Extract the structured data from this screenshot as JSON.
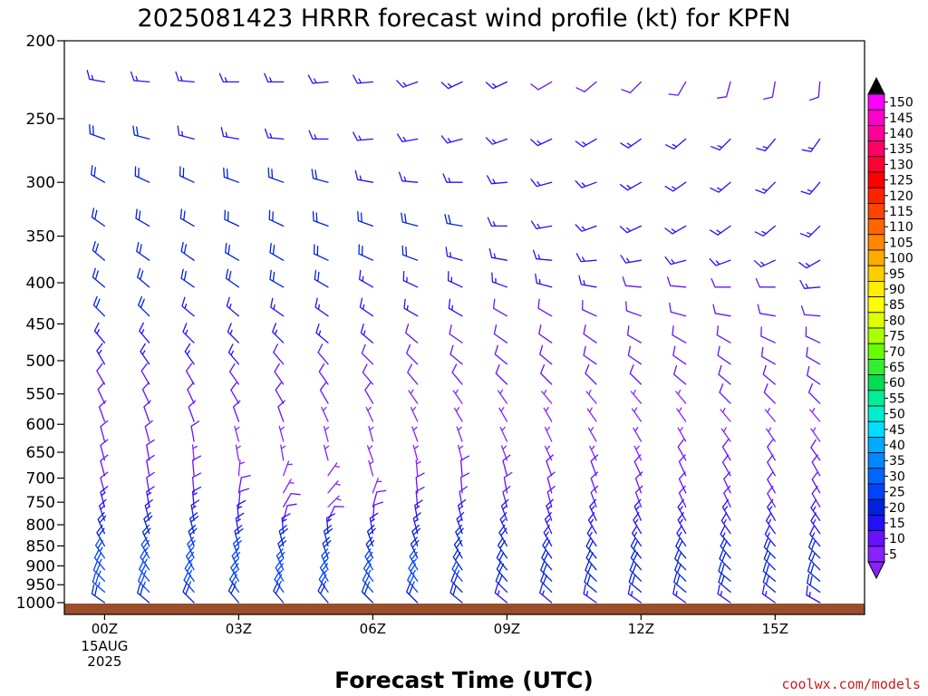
{
  "colors": {
    "ground": "#9a4f2a",
    "credit": "#cc1a1a"
  },
  "credit": "coolwx.com/models",
  "chart_data": {
    "type": "wind-barb-profile",
    "title": "2025081423 HRRR forecast wind profile (kt) for KPFN",
    "xlabel": "Forecast Time (UTC)",
    "ylabel": "",
    "y_axis": {
      "scale": "log-pressure",
      "range_hPa": [
        1035,
        200
      ],
      "ticks": [
        "200",
        "250",
        "300",
        "350",
        "400",
        "450",
        "500",
        "550",
        "600",
        "650",
        "700",
        "750",
        "800",
        "850",
        "900",
        "950",
        "1000"
      ]
    },
    "x_axis": {
      "range_hours": [
        -0.9,
        17.0
      ],
      "ticks": [
        {
          "hour": 0,
          "label": "00Z",
          "sublabels": [
            "15AUG",
            "2025"
          ]
        },
        {
          "hour": 3,
          "label": "03Z"
        },
        {
          "hour": 6,
          "label": "06Z"
        },
        {
          "hour": 9,
          "label": "09Z"
        },
        {
          "hour": 12,
          "label": "12Z"
        },
        {
          "hour": 15,
          "label": "15Z"
        }
      ]
    },
    "hours": [
      -1,
      0,
      1,
      2,
      3,
      4,
      5,
      6,
      7,
      8,
      9,
      10,
      11,
      12,
      13,
      14,
      15,
      16,
      17
    ],
    "levels_hPa": [
      225,
      265,
      300,
      340,
      375,
      405,
      440,
      475,
      505,
      535,
      565,
      595,
      630,
      665,
      695,
      730,
      760,
      790,
      820,
      850,
      880,
      910,
      940,
      970,
      1000
    ],
    "grid": false,
    "colorbar": {
      "label": "",
      "labels": [
        "150",
        "145",
        "140",
        "135",
        "130",
        "125",
        "120",
        "115",
        "110",
        "105",
        "100",
        "95",
        "90",
        "85",
        "80",
        "75",
        "70",
        "65",
        "60",
        "55",
        "50",
        "45",
        "40",
        "35",
        "30",
        "25",
        "20",
        "15",
        "10",
        "5"
      ],
      "colors": [
        "#ff00ff",
        "#ff00cc",
        "#ff0099",
        "#ff0066",
        "#ff0033",
        "#ff0000",
        "#ff2200",
        "#ff4400",
        "#ff6600",
        "#ff8800",
        "#ffaa00",
        "#ffcc00",
        "#ffee00",
        "#ffff00",
        "#ddff00",
        "#aaff00",
        "#66ff00",
        "#33ee33",
        "#00dd55",
        "#00ee99",
        "#00eecc",
        "#00ddff",
        "#00aaff",
        "#0088ff",
        "#0066ff",
        "#0044ff",
        "#0022dd",
        "#2211ff",
        "#6611ff",
        "#8822ff"
      ]
    },
    "directions_deg": [
      [
        225,
        280,
        275,
        275,
        270,
        270,
        265,
        265,
        250,
        245,
        245,
        240,
        230,
        225,
        210,
        195,
        190,
        185,
        160
      ],
      [
        290,
        290,
        285,
        285,
        280,
        275,
        270,
        265,
        260,
        255,
        250,
        245,
        240,
        235,
        230,
        225,
        220,
        215,
        215
      ],
      [
        300,
        300,
        295,
        295,
        290,
        290,
        285,
        280,
        275,
        270,
        265,
        255,
        250,
        240,
        235,
        230,
        225,
        220,
        215
      ],
      [
        305,
        305,
        300,
        300,
        295,
        295,
        290,
        290,
        285,
        280,
        270,
        260,
        250,
        245,
        240,
        235,
        230,
        225,
        220
      ],
      [
        310,
        310,
        305,
        305,
        300,
        300,
        295,
        295,
        290,
        285,
        280,
        275,
        265,
        260,
        255,
        250,
        245,
        240,
        235
      ],
      [
        315,
        310,
        310,
        305,
        305,
        300,
        300,
        300,
        295,
        295,
        290,
        285,
        280,
        275,
        275,
        270,
        270,
        265,
        260
      ],
      [
        320,
        315,
        315,
        310,
        310,
        305,
        305,
        305,
        300,
        300,
        300,
        300,
        295,
        290,
        285,
        280,
        280,
        275,
        275
      ],
      [
        325,
        320,
        320,
        315,
        315,
        315,
        310,
        310,
        310,
        305,
        305,
        305,
        305,
        300,
        300,
        300,
        295,
        295,
        290
      ],
      [
        330,
        330,
        325,
        325,
        320,
        320,
        320,
        315,
        315,
        310,
        310,
        310,
        305,
        305,
        305,
        305,
        300,
        300,
        300
      ],
      [
        330,
        330,
        330,
        330,
        325,
        325,
        325,
        320,
        320,
        320,
        315,
        315,
        315,
        315,
        310,
        310,
        310,
        305,
        305
      ],
      [
        335,
        335,
        335,
        335,
        330,
        330,
        330,
        330,
        325,
        325,
        325,
        320,
        320,
        320,
        320,
        315,
        315,
        315,
        310
      ],
      [
        340,
        340,
        340,
        340,
        340,
        340,
        335,
        335,
        335,
        330,
        330,
        330,
        325,
        325,
        325,
        320,
        320,
        320,
        315
      ],
      [
        345,
        345,
        345,
        350,
        345,
        345,
        345,
        345,
        340,
        340,
        335,
        335,
        330,
        330,
        330,
        325,
        325,
        325,
        320
      ],
      [
        340,
        345,
        350,
        355,
        350,
        350,
        345,
        340,
        345,
        345,
        340,
        335,
        335,
        335,
        330,
        330,
        330,
        325,
        325
      ],
      [
        340,
        345,
        350,
        355,
        5,
        20,
        35,
        345,
        355,
        355,
        345,
        340,
        340,
        335,
        335,
        330,
        330,
        330,
        325
      ],
      [
        345,
        345,
        350,
        355,
        10,
        30,
        40,
        20,
        355,
        355,
        350,
        345,
        340,
        340,
        335,
        335,
        330,
        330,
        330
      ],
      [
        340,
        345,
        350,
        355,
        5,
        30,
        45,
        15,
        355,
        350,
        345,
        345,
        340,
        340,
        335,
        335,
        330,
        330,
        330
      ],
      [
        335,
        340,
        345,
        350,
        355,
        15,
        25,
        5,
        350,
        345,
        340,
        340,
        335,
        335,
        330,
        330,
        330,
        325,
        325
      ],
      [
        330,
        335,
        340,
        345,
        350,
        355,
        355,
        350,
        345,
        340,
        335,
        335,
        330,
        330,
        330,
        325,
        325,
        325,
        320
      ],
      [
        325,
        330,
        335,
        340,
        345,
        345,
        345,
        340,
        340,
        335,
        330,
        330,
        325,
        325,
        325,
        320,
        320,
        320,
        320
      ],
      [
        320,
        325,
        330,
        335,
        340,
        340,
        340,
        335,
        335,
        330,
        325,
        325,
        320,
        320,
        320,
        320,
        315,
        315,
        315
      ],
      [
        315,
        320,
        325,
        330,
        335,
        335,
        335,
        330,
        330,
        325,
        320,
        320,
        320,
        320,
        315,
        315,
        315,
        315,
        315
      ],
      [
        310,
        315,
        320,
        325,
        330,
        330,
        330,
        325,
        325,
        320,
        320,
        315,
        315,
        315,
        315,
        310,
        310,
        310,
        310
      ],
      [
        305,
        310,
        315,
        320,
        325,
        325,
        325,
        320,
        320,
        315,
        315,
        315,
        310,
        310,
        310,
        310,
        310,
        305,
        305
      ],
      [
        300,
        305,
        310,
        315,
        320,
        320,
        320,
        315,
        315,
        310,
        310,
        310,
        305,
        305,
        305,
        305,
        305,
        300,
        300
      ]
    ],
    "speeds_kt": [
      [
        14,
        15,
        15,
        15,
        15,
        15,
        14,
        14,
        13,
        13,
        13,
        12,
        12,
        11,
        10,
        10,
        10,
        10,
        10
      ],
      [
        18,
        18,
        18,
        17,
        17,
        16,
        16,
        15,
        15,
        14,
        14,
        14,
        13,
        13,
        13,
        13,
        14,
        14,
        14
      ],
      [
        20,
        20,
        20,
        19,
        19,
        18,
        18,
        17,
        17,
        16,
        16,
        15,
        15,
        15,
        15,
        15,
        15,
        15,
        15
      ],
      [
        22,
        22,
        21,
        21,
        20,
        20,
        19,
        19,
        18,
        18,
        17,
        16,
        16,
        15,
        15,
        15,
        15,
        16,
        16
      ],
      [
        22,
        22,
        21,
        21,
        20,
        20,
        19,
        19,
        18,
        17,
        16,
        15,
        15,
        14,
        14,
        14,
        15,
        15,
        15
      ],
      [
        20,
        20,
        20,
        19,
        19,
        18,
        18,
        17,
        16,
        15,
        14,
        13,
        13,
        12,
        12,
        12,
        12,
        13,
        13
      ],
      [
        18,
        18,
        18,
        17,
        17,
        16,
        16,
        15,
        14,
        13,
        12,
        12,
        11,
        11,
        11,
        11,
        11,
        11,
        11
      ],
      [
        16,
        16,
        16,
        15,
        15,
        14,
        14,
        13,
        12,
        11,
        10,
        10,
        10,
        10,
        10,
        10,
        10,
        10,
        10
      ],
      [
        14,
        14,
        14,
        13,
        13,
        12,
        12,
        11,
        10,
        10,
        9,
        9,
        9,
        9,
        9,
        9,
        9,
        9,
        9
      ],
      [
        12,
        12,
        12,
        11,
        11,
        10,
        10,
        9,
        9,
        8,
        8,
        8,
        8,
        8,
        8,
        8,
        8,
        8,
        8
      ],
      [
        11,
        11,
        10,
        10,
        9,
        9,
        8,
        8,
        7,
        7,
        7,
        7,
        7,
        7,
        7,
        8,
        8,
        8,
        8
      ],
      [
        10,
        10,
        9,
        9,
        8,
        8,
        7,
        6,
        6,
        6,
        6,
        6,
        6,
        7,
        7,
        7,
        7,
        7,
        7
      ],
      [
        9,
        9,
        8,
        8,
        7,
        6,
        5,
        5,
        5,
        6,
        6,
        6,
        6,
        7,
        7,
        7,
        7,
        7,
        7
      ],
      [
        9,
        9,
        8,
        7,
        6,
        5,
        5,
        5,
        6,
        7,
        7,
        7,
        7,
        7,
        8,
        8,
        8,
        8,
        8
      ],
      [
        10,
        10,
        9,
        8,
        6,
        5,
        5,
        6,
        7,
        8,
        8,
        8,
        8,
        8,
        8,
        9,
        9,
        9,
        9
      ],
      [
        12,
        12,
        11,
        10,
        8,
        6,
        5,
        7,
        9,
        10,
        10,
        10,
        10,
        10,
        10,
        10,
        10,
        10,
        10
      ],
      [
        14,
        15,
        14,
        13,
        10,
        8,
        7,
        9,
        11,
        12,
        12,
        12,
        12,
        12,
        12,
        12,
        12,
        12,
        12
      ],
      [
        16,
        17,
        17,
        16,
        14,
        11,
        10,
        12,
        14,
        15,
        15,
        14,
        14,
        14,
        14,
        14,
        14,
        14,
        14
      ],
      [
        18,
        19,
        19,
        18,
        17,
        15,
        14,
        16,
        17,
        17,
        16,
        16,
        16,
        15,
        15,
        15,
        15,
        15,
        15
      ],
      [
        20,
        21,
        21,
        21,
        20,
        19,
        18,
        19,
        19,
        18,
        18,
        17,
        17,
        17,
        17,
        17,
        17,
        17,
        17
      ],
      [
        22,
        23,
        23,
        23,
        23,
        22,
        22,
        22,
        21,
        20,
        19,
        18,
        18,
        18,
        18,
        18,
        18,
        18,
        18
      ],
      [
        24,
        25,
        25,
        25,
        25,
        24,
        24,
        24,
        23,
        22,
        20,
        19,
        19,
        19,
        19,
        19,
        19,
        19,
        19
      ],
      [
        24,
        25,
        26,
        26,
        26,
        26,
        25,
        25,
        24,
        23,
        21,
        20,
        20,
        20,
        20,
        20,
        20,
        20,
        20
      ],
      [
        22,
        23,
        24,
        25,
        25,
        25,
        24,
        24,
        23,
        22,
        20,
        19,
        19,
        19,
        19,
        19,
        19,
        19,
        19
      ],
      [
        18,
        19,
        20,
        21,
        21,
        21,
        20,
        20,
        19,
        18,
        17,
        16,
        16,
        16,
        16,
        16,
        16,
        16,
        16
      ]
    ]
  }
}
